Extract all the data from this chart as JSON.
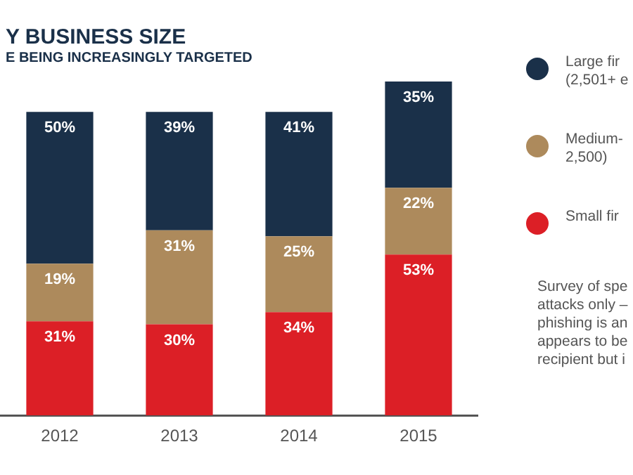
{
  "chart_data": {
    "type": "bar",
    "title": "Y BUSINESS SIZE",
    "subtitle": "E BEING INCREASINGLY TARGETED",
    "categories": [
      "2012",
      "2013",
      "2014",
      "2015"
    ],
    "stacked": true,
    "ylim": [
      0,
      110
    ],
    "tick_labels": "x",
    "grid": false,
    "legend": "right",
    "series": [
      {
        "name": "Small fir",
        "color": "#dc1f26",
        "values": [
          31,
          30,
          34,
          53
        ],
        "value_labels": [
          "31%",
          "30%",
          "34%",
          "53%"
        ]
      },
      {
        "name": "Medium- 2,500)",
        "color": "#ad8a5c",
        "values": [
          19,
          31,
          25,
          22
        ],
        "value_labels": [
          "19%",
          "31%",
          "25%",
          "22%"
        ]
      },
      {
        "name": "Large fir (2,501+ e",
        "color": "#1a3049",
        "values": [
          50,
          39,
          41,
          35
        ],
        "value_labels": [
          "50%",
          "39%",
          "41%",
          "35%"
        ]
      }
    ],
    "annotations": [
      "Survey of spe attacks only – phishing is an appears to be recipient but i"
    ]
  }
}
